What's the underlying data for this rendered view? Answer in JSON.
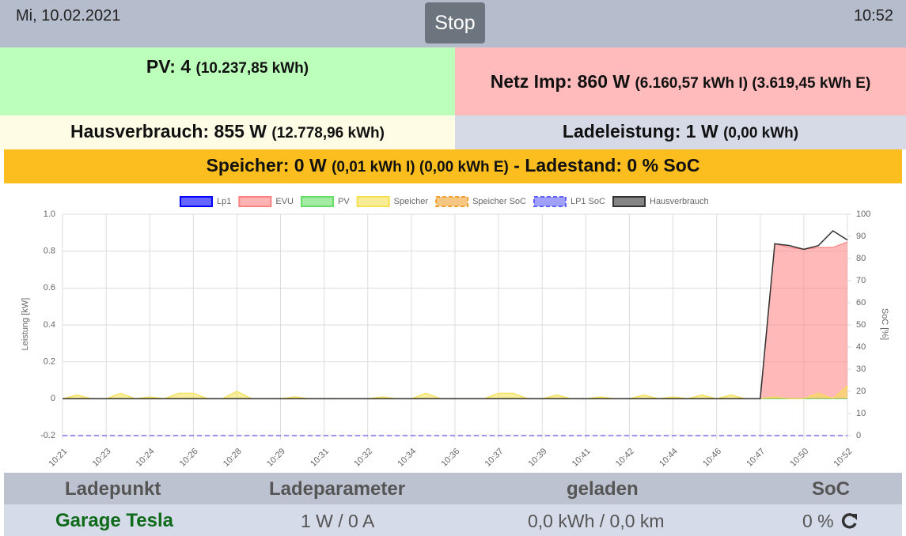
{
  "header": {
    "date": "Mi, 10.02.2021",
    "button": "Stop",
    "time": "10:52"
  },
  "tiles": {
    "pv": {
      "main": "PV: 4",
      "detail": "(10.237,85 kWh)"
    },
    "grid": {
      "main": "Netz Imp: 860 W",
      "detail": "(6.160,57 kWh I) (3.619,45 kWh E)"
    },
    "house": {
      "main": "Hausverbrauch: 855 W",
      "detail": "(12.778,96 kWh)"
    },
    "charge": {
      "main": "Ladeleistung: 1 W",
      "detail": "(0,00 kWh)"
    },
    "storage": {
      "main": "Speicher: 0 W",
      "detail": "(0,01 kWh I) (0,00 kWh E)",
      "tail": "- Ladestand: 0 % SoC"
    }
  },
  "chart_data": {
    "type": "line",
    "y_label": "Leistung [kW]",
    "y2_label": "SoC [%]",
    "categories": [
      "10:21",
      null,
      null,
      "10:23",
      null,
      null,
      "10:24",
      null,
      null,
      "10:26",
      null,
      null,
      "10:28",
      null,
      null,
      "10:29",
      null,
      null,
      "10:31",
      null,
      null,
      "10:32",
      null,
      null,
      "10:34",
      null,
      null,
      "10:36",
      null,
      null,
      "10:37",
      null,
      null,
      "10:39",
      null,
      null,
      "10:41",
      null,
      null,
      "10:42",
      null,
      null,
      "10:44",
      null,
      null,
      "10:46",
      null,
      null,
      "10:47",
      null,
      null,
      "10:50",
      null,
      null,
      "10:52"
    ],
    "ylim": [
      -0.2,
      1.0
    ],
    "yticks": [
      -0.2,
      {
        "value": 0,
        "label": "0"
      },
      0.2,
      0.4,
      0.6,
      0.8,
      {
        "value": 1.0,
        "label": "1.0"
      }
    ],
    "y2lim": [
      0,
      100
    ],
    "y2ticks": [
      0,
      10,
      20,
      30,
      40,
      50,
      60,
      70,
      80,
      90,
      100
    ],
    "grid": true,
    "series": [
      {
        "name": "Lp1",
        "color": "#0000ff",
        "fill": false,
        "dashed": false,
        "values": [
          0,
          0,
          0,
          0,
          0,
          0,
          0,
          0,
          0,
          0,
          0,
          0,
          0,
          0,
          0,
          0,
          0,
          0,
          0,
          0,
          0,
          0,
          0,
          0,
          0,
          0,
          0,
          0,
          0,
          0,
          0,
          0,
          0,
          0,
          0,
          0,
          0,
          0,
          0,
          0,
          0,
          0,
          0,
          0,
          0,
          0,
          0,
          0,
          0,
          0,
          0,
          0,
          0,
          0,
          0
        ]
      },
      {
        "name": "EVU",
        "color": "#ff8080",
        "fill": true,
        "dashed": false,
        "values": [
          0,
          0,
          0,
          0,
          0,
          0,
          0,
          0,
          0,
          0,
          0,
          0,
          0,
          0,
          0,
          0,
          0,
          0,
          0,
          0,
          0,
          0,
          0,
          0,
          0,
          0,
          0,
          0,
          0,
          0,
          0,
          0,
          0,
          0,
          0,
          0,
          0,
          0,
          0,
          0,
          0,
          0,
          0,
          0,
          0,
          0,
          0,
          0,
          0,
          0.84,
          0.82,
          0.81,
          0.82,
          0.82,
          0.85
        ]
      },
      {
        "name": "PV",
        "color": "#66dd66",
        "fill": true,
        "dashed": false,
        "values": [
          0,
          0,
          0,
          0,
          0,
          0,
          0,
          0,
          0,
          0,
          0,
          0,
          0,
          0,
          0,
          0,
          0,
          0,
          0,
          0,
          0,
          0,
          0,
          0,
          0,
          0,
          0,
          0,
          0,
          0,
          0,
          0,
          0,
          0,
          0,
          0,
          0,
          0,
          0,
          0,
          0,
          0,
          0,
          0,
          0,
          0,
          0,
          0,
          0,
          0,
          0,
          0,
          0,
          0,
          0
        ]
      },
      {
        "name": "Speicher",
        "color": "#f5e050",
        "fill": true,
        "dashed": false,
        "values": [
          0,
          0.02,
          0,
          0,
          0.03,
          0,
          0.01,
          0,
          0.03,
          0.03,
          0,
          0,
          0.04,
          0,
          0,
          0,
          0.01,
          0,
          0,
          0,
          0,
          0,
          0.01,
          0,
          0,
          0.03,
          0,
          0,
          0,
          0,
          0.03,
          0.03,
          0,
          0,
          0.02,
          0,
          0,
          0.01,
          0,
          0,
          0.02,
          0,
          0.01,
          0,
          0.02,
          0,
          0.02,
          0,
          0,
          0.01,
          0,
          0,
          0.03,
          0,
          0.07
        ]
      },
      {
        "name": "Speicher SoC",
        "color": "#f0a030",
        "fill": false,
        "dashed": true,
        "axis": "y2",
        "values": [
          0,
          0,
          0,
          0,
          0,
          0,
          0,
          0,
          0,
          0,
          0,
          0,
          0,
          0,
          0,
          0,
          0,
          0,
          0,
          0,
          0,
          0,
          0,
          0,
          0,
          0,
          0,
          0,
          0,
          0,
          0,
          0,
          0,
          0,
          0,
          0,
          0,
          0,
          0,
          0,
          0,
          0,
          0,
          0,
          0,
          0,
          0,
          0,
          0,
          0,
          0,
          0,
          0,
          0,
          0
        ]
      },
      {
        "name": "LP1 SoC",
        "color": "#6060ff",
        "fill": false,
        "dashed": true,
        "axis": "y2",
        "values": [
          0,
          0,
          0,
          0,
          0,
          0,
          0,
          0,
          0,
          0,
          0,
          0,
          0,
          0,
          0,
          0,
          0,
          0,
          0,
          0,
          0,
          0,
          0,
          0,
          0,
          0,
          0,
          0,
          0,
          0,
          0,
          0,
          0,
          0,
          0,
          0,
          0,
          0,
          0,
          0,
          0,
          0,
          0,
          0,
          0,
          0,
          0,
          0,
          0,
          0,
          0,
          0,
          0,
          0,
          0
        ]
      },
      {
        "name": "Hausverbrauch",
        "color": "#333333",
        "fill": false,
        "dashed": false,
        "values": [
          0,
          0,
          0,
          0,
          0,
          0,
          0,
          0,
          0,
          0,
          0,
          0,
          0,
          0,
          0,
          0,
          0,
          0,
          0,
          0,
          0,
          0,
          0,
          0,
          0,
          0,
          0,
          0,
          0,
          0,
          0,
          0,
          0,
          0,
          0,
          0,
          0,
          0,
          0,
          0,
          0,
          0,
          0,
          0,
          0,
          0,
          0,
          0,
          0,
          0.84,
          0.83,
          0.81,
          0.83,
          0.91,
          0.86
        ]
      }
    ]
  },
  "table": {
    "headers": [
      "Ladepunkt",
      "Ladeparameter",
      "geladen",
      "SoC"
    ],
    "rows": [
      [
        "Garage Tesla",
        "1 W / 0 A",
        "0,0 kWh / 0,0 km",
        "0 %"
      ]
    ]
  }
}
